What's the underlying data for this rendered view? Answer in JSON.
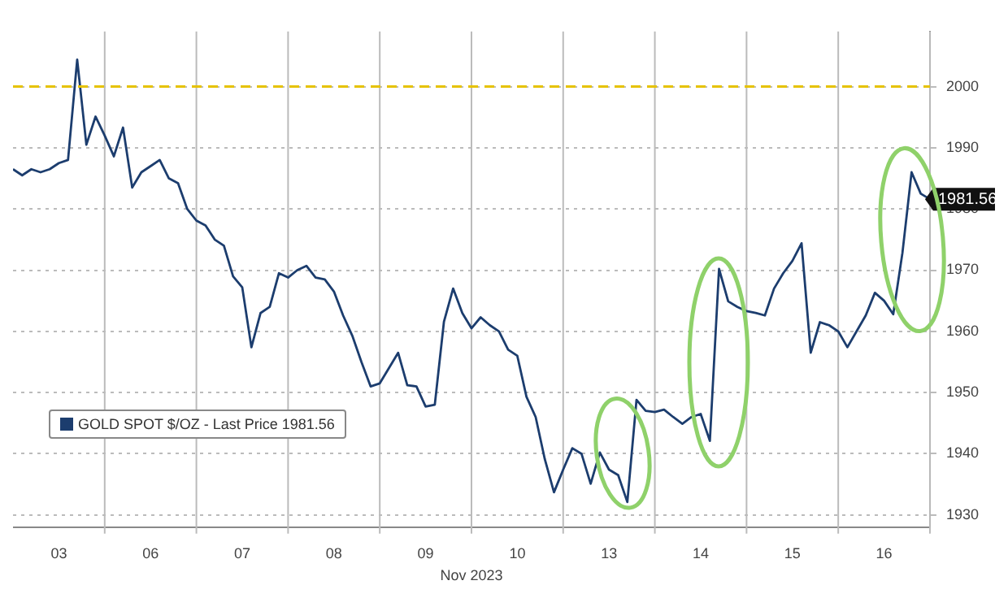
{
  "chart_data": {
    "type": "line",
    "xlabel": "Nov 2023",
    "categories": [
      null,
      null,
      null,
      null,
      null,
      "03",
      null,
      null,
      null,
      null,
      null,
      null,
      null,
      null,
      null,
      "06",
      null,
      null,
      null,
      null,
      null,
      null,
      null,
      null,
      null,
      "07",
      null,
      null,
      null,
      null,
      null,
      null,
      null,
      null,
      null,
      "08",
      null,
      null,
      null,
      null,
      null,
      null,
      null,
      null,
      null,
      "09",
      null,
      null,
      null,
      null,
      null,
      null,
      null,
      null,
      null,
      "10",
      null,
      null,
      null,
      null,
      null,
      null,
      null,
      null,
      null,
      "13",
      null,
      null,
      null,
      null,
      null,
      null,
      null,
      null,
      null,
      "14",
      null,
      null,
      null,
      null,
      null,
      null,
      null,
      null,
      null,
      "15",
      null,
      null,
      null,
      null,
      null,
      null,
      null,
      null,
      null,
      "16",
      null,
      null,
      null,
      null,
      null
    ],
    "series": [
      {
        "name": "GOLD SPOT $/OZ - Last Price 1981.56",
        "color": "#1c3d6e",
        "values": [
          1986.5,
          1985.5,
          1986.5,
          1986,
          1986.5,
          1987.5,
          1988,
          2004.4,
          1990.5,
          1995.1,
          1992,
          1988.6,
          1993.3,
          1983.5,
          1986,
          1987,
          1988,
          1985,
          1984.2,
          1980,
          1978.1,
          1977.3,
          1975,
          1974,
          1969,
          1967.2,
          1957.4,
          1963,
          1964,
          1969.5,
          1968.8,
          1970,
          1970.7,
          1968.8,
          1968.5,
          1966.5,
          1962.6,
          1959.3,
          1955,
          1951,
          1951.5,
          1954,
          1956.5,
          1951.2,
          1951,
          1947.7,
          1948,
          1961.6,
          1967,
          1963,
          1960.5,
          1962.3,
          1961,
          1960,
          1957,
          1956,
          1949.3,
          1946,
          1939.1,
          1933.7,
          1937.4,
          1940.9,
          1940,
          1935.1,
          1940.2,
          1937.4,
          1936.5,
          1932.1,
          1948.8,
          1947,
          1946.8,
          1947.2,
          1946,
          1944.9,
          1946,
          1946.5,
          1942.1,
          1970.2,
          1964.9,
          1964,
          1963.3,
          1963,
          1962.6,
          1967,
          1969.5,
          1971.5,
          1974.4,
          1956.5,
          1961.5,
          1961,
          1960,
          1957.4,
          1960,
          1962.6,
          1966.3,
          1965,
          1962.8,
          1972.8,
          1986,
          1982.5,
          1981.6
        ]
      }
    ],
    "ylim": [
      1928,
      2009
    ],
    "yticks": [
      1930,
      1940,
      1950,
      1960,
      1970,
      1980,
      1990,
      2000
    ],
    "ref_lines": [
      {
        "axis": "y",
        "value": 2000,
        "color": "#e6c200",
        "line_style": "dashed"
      }
    ],
    "annotations": [
      "1981.56"
    ],
    "grid": true,
    "legend": "left",
    "marker": "none",
    "line_style": "solid"
  }
}
